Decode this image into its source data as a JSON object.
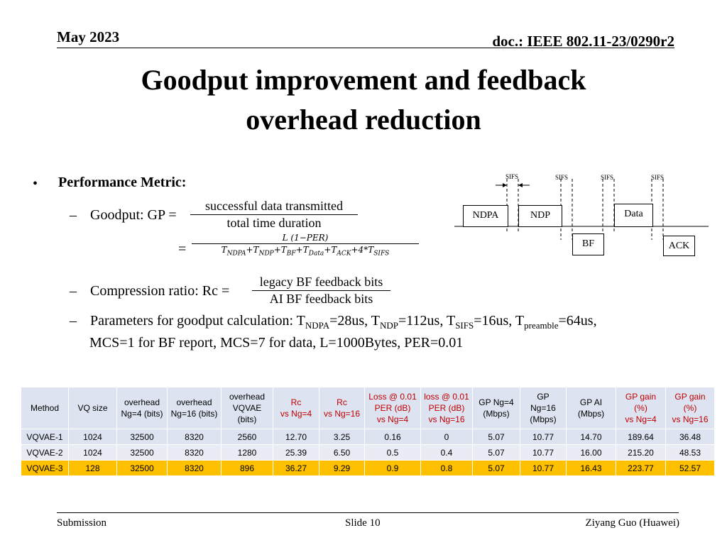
{
  "header": {
    "date": "May 2023",
    "doc": "doc.: IEEE 802.11-23/0290r2"
  },
  "title": {
    "line1": "Goodput improvement and feedback",
    "line2": "overhead reduction"
  },
  "metric": {
    "bullet": "•",
    "label": "Performance Metric:",
    "dash": "–",
    "goodput_label": "Goodput: GP =",
    "goodput_num": "successful data transmitted",
    "goodput_den": "total time duration",
    "eq": "=",
    "gp2_num": "L (1−PER)",
    "gp2_den": "T_NDPA+T_NDP+T_BF+T_Data+T_ACK+4*T_SIFS",
    "rc_label": "Compression ratio: Rc =",
    "rc_num": "legacy BF feedback bits",
    "rc_den": "AI BF feedback bits",
    "params_prefix": "Parameters for goodput calculation: T",
    "params_sub1": "NDPA",
    "params_t1": "=28us, T",
    "params_sub2": "NDP",
    "params_t2": "=112us, T",
    "params_sub3": "SIFS",
    "params_t3": "=16us, T",
    "params_sub4": "preamble",
    "params_t4": "=64us,",
    "params_line2": "MCS=1 for BF report, MCS=7 for data, L=1000Bytes, PER=0.01"
  },
  "diagram": {
    "sifs": [
      "SIFS",
      "SIFS",
      "SIFS",
      "SIFS"
    ],
    "ndpa": "NDPA",
    "ndp": "NDP",
    "data": "Data",
    "bf": "BF",
    "ack": "ACK"
  },
  "table": {
    "headers": [
      "Method",
      "VQ size",
      "overhead\nNg=4 (bits)",
      "overhead\nNg=16 (bits)",
      "overhead\nVQVAE\n(bits)",
      "Rc\nvs Ng=4",
      "Rc\nvs Ng=16",
      "Loss @ 0.01\nPER (dB)\nvs Ng=4",
      "loss @ 0.01\nPER (dB)\nvs Ng=16",
      "GP Ng=4\n(Mbps)",
      "GP\nNg=16\n(Mbps)",
      "GP AI\n(Mbps)",
      "GP gain\n(%)\nvs Ng=4",
      "GP gain\n(%)\nvs Ng=16"
    ],
    "rows": [
      [
        "VQVAE-1",
        "1024",
        "32500",
        "8320",
        "2560",
        "12.70",
        "3.25",
        "0.16",
        "0",
        "5.07",
        "10.77",
        "14.70",
        "189.64",
        "36.48"
      ],
      [
        "VQVAE-2",
        "1024",
        "32500",
        "8320",
        "1280",
        "25.39",
        "6.50",
        "0.5",
        "0.4",
        "5.07",
        "10.77",
        "16.00",
        "215.20",
        "48.53"
      ],
      [
        "VQVAE-3",
        "128",
        "32500",
        "8320",
        "896",
        "36.27",
        "9.29",
        "0.9",
        "0.8",
        "5.07",
        "10.77",
        "16.43",
        "223.77",
        "52.57"
      ]
    ],
    "highlight_color": "#ffc000",
    "red_header_color": "#c00000"
  },
  "footer": {
    "left": "Submission",
    "mid": "Slide 10",
    "right": "Ziyang Guo (Huawei)"
  }
}
